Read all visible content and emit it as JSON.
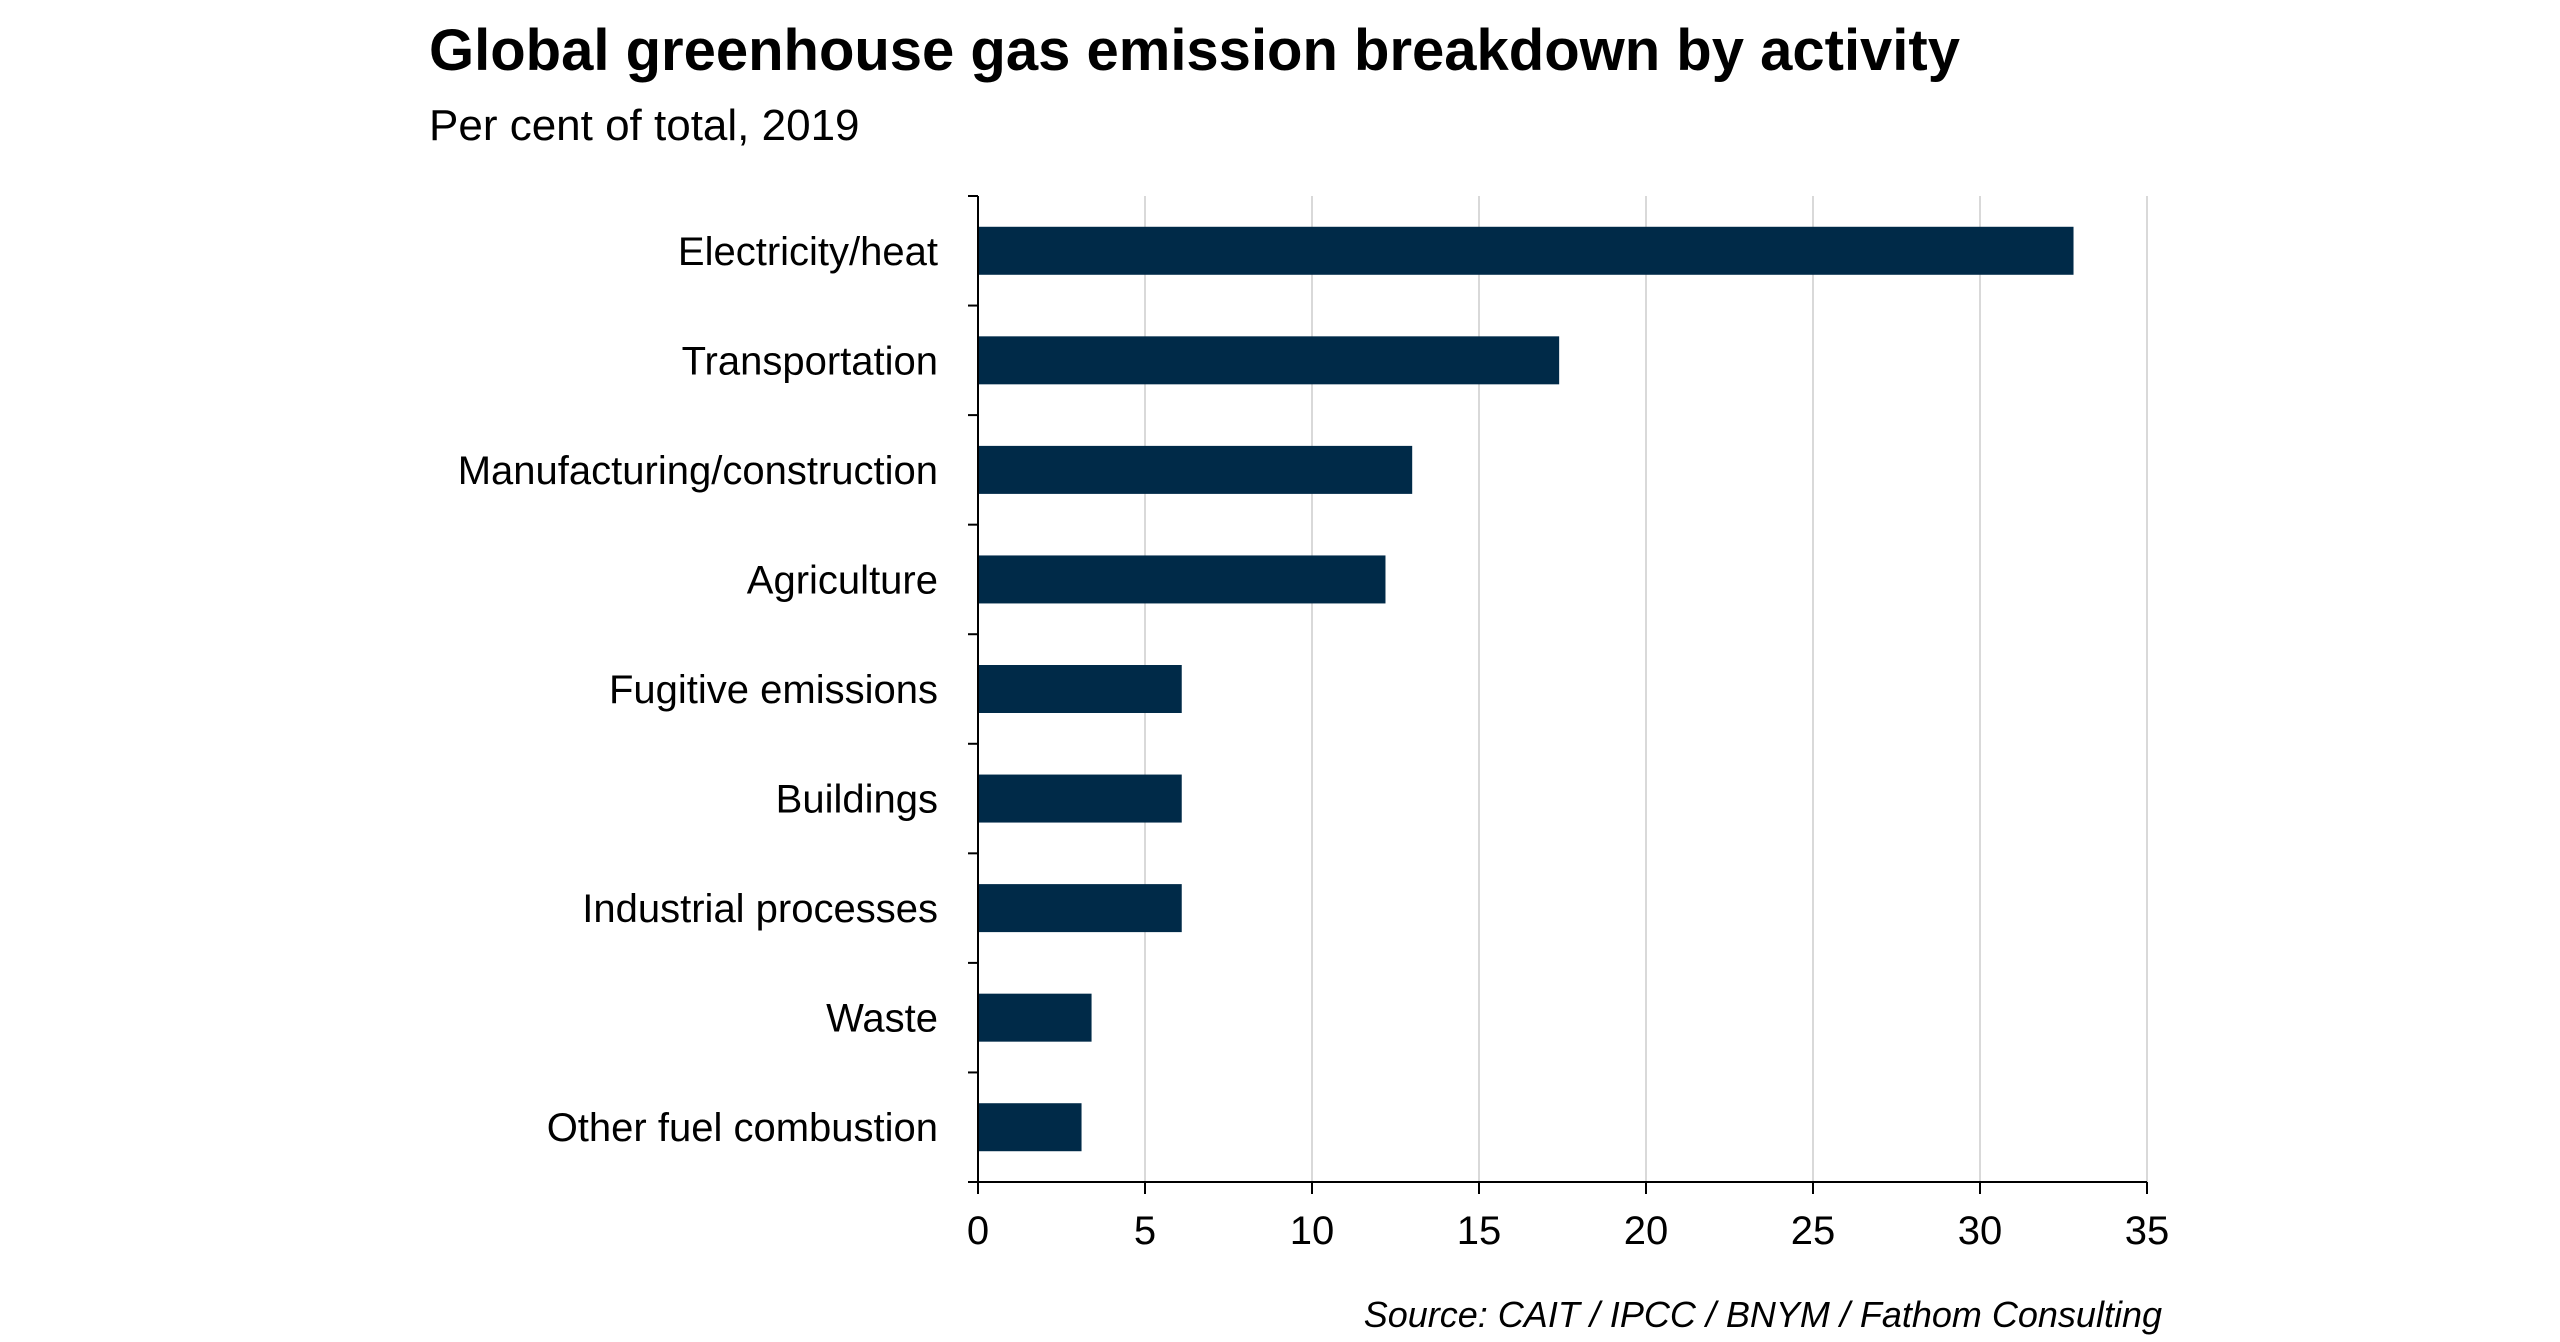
{
  "chart_data": {
    "type": "bar",
    "orientation": "horizontal",
    "title": "Global greenhouse gas emission breakdown by activity",
    "subtitle": "Per cent of total, 2019",
    "source": "Source: CAIT / IPCC / BNYM / Fathom Consulting",
    "categories": [
      "Electricity/heat",
      "Transportation",
      "Manufacturing/construction",
      "Agriculture",
      "Fugitive emissions",
      "Buildings",
      "Industrial processes",
      "Waste",
      "Other fuel combustion"
    ],
    "values": [
      32.8,
      17.4,
      13.0,
      12.2,
      6.1,
      6.1,
      6.1,
      3.4,
      3.1
    ],
    "xlim": [
      0,
      35
    ],
    "xticks": [
      0,
      5,
      10,
      15,
      20,
      25,
      30,
      35
    ],
    "grid": true,
    "bar_color": "#002a48",
    "grid_color": "#d9d9d9"
  }
}
